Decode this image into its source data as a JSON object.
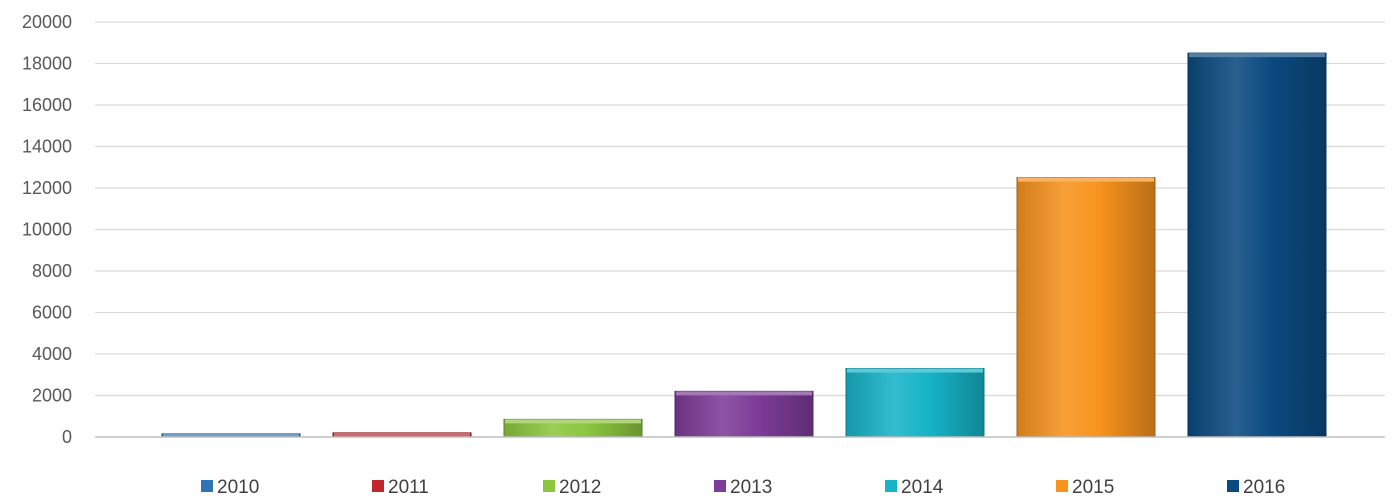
{
  "chart_data": {
    "type": "bar",
    "title": "",
    "xlabel": "",
    "ylabel": "",
    "ylim": [
      0,
      20000
    ],
    "yticks": [
      0,
      2000,
      4000,
      6000,
      8000,
      10000,
      12000,
      14000,
      16000,
      18000,
      20000
    ],
    "grid": true,
    "legend_position": "bottom",
    "series": [
      {
        "name": "2010",
        "value": 150,
        "color": "#2e75b6"
      },
      {
        "name": "2011",
        "value": 200,
        "color": "#c0272d"
      },
      {
        "name": "2012",
        "value": 850,
        "color": "#8cc63f"
      },
      {
        "name": "2013",
        "value": 2200,
        "color": "#7d3c98"
      },
      {
        "name": "2014",
        "value": 3300,
        "color": "#17b3c8"
      },
      {
        "name": "2015",
        "value": 12500,
        "color": "#f7931e"
      },
      {
        "name": "2016",
        "value": 18500,
        "color": "#0b4a80"
      }
    ]
  }
}
